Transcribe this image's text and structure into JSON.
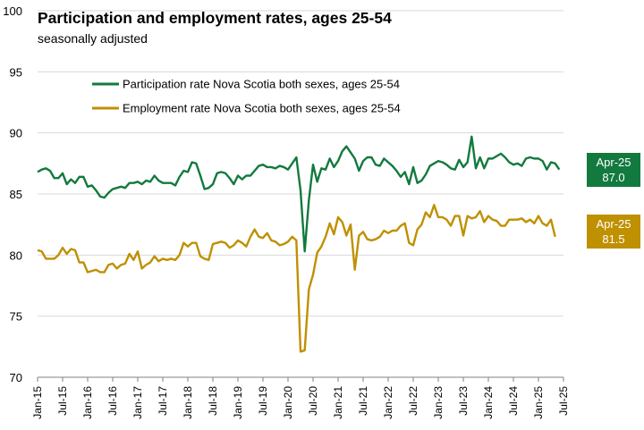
{
  "title": "Participation and employment rates, ages 25-54",
  "subtitle": "seasonally adjusted",
  "colors": {
    "participation": "#127a3e",
    "employment": "#bf9000",
    "grid": "#d9d9d9",
    "axis": "#808080"
  },
  "callouts": {
    "participation": {
      "label": "Apr-25",
      "value": "87.0"
    },
    "employment": {
      "label": "Apr-25",
      "value": "81.5"
    }
  },
  "chart_data": {
    "type": "line",
    "title": "Participation and employment rates, ages 25-54",
    "subtitle": "seasonally adjusted",
    "ylim": [
      70,
      100
    ],
    "yticks": [
      70,
      75,
      80,
      85,
      90,
      95,
      100
    ],
    "x_start": "Jan-15",
    "x_count_months": 127,
    "x_axis_months": 127,
    "xtick_labels": [
      "Jan-15",
      "Jul-15",
      "Jan-16",
      "Jul-16",
      "Jan-17",
      "Jul-17",
      "Jan-18",
      "Jul-18",
      "Jan-19",
      "Jul-19",
      "Jan-20",
      "Jul-20",
      "Jan-21",
      "Jul-21",
      "Jan-22",
      "Jul-22",
      "Jan-23",
      "Jul-23",
      "Jan-24",
      "Jul-24",
      "Jan-25",
      "Jul-25"
    ],
    "grid": true,
    "legend_position": "top-left",
    "series": [
      {
        "name": "Participation rate Nova Scotia both sexes, ages 25-54",
        "key": "participation",
        "values": [
          86.8,
          87.0,
          87.1,
          86.9,
          86.3,
          86.3,
          86.7,
          85.8,
          86.2,
          85.9,
          86.4,
          86.4,
          85.6,
          85.7,
          85.3,
          84.8,
          84.7,
          85.1,
          85.4,
          85.5,
          85.6,
          85.5,
          85.9,
          85.9,
          86.0,
          85.8,
          86.1,
          86.0,
          86.5,
          86.1,
          85.9,
          85.9,
          85.9,
          85.7,
          86.4,
          86.9,
          86.8,
          87.6,
          87.5,
          86.5,
          85.4,
          85.5,
          85.8,
          86.7,
          86.8,
          86.7,
          86.3,
          85.8,
          86.5,
          86.2,
          86.5,
          86.5,
          86.9,
          87.3,
          87.4,
          87.2,
          87.2,
          87.1,
          87.3,
          87.2,
          87.0,
          87.5,
          88.0,
          85.3,
          80.3,
          84.5,
          87.4,
          86.0,
          87.1,
          87.0,
          87.9,
          87.2,
          87.7,
          88.5,
          88.9,
          88.4,
          87.9,
          86.9,
          87.7,
          88.0,
          88.0,
          87.4,
          87.3,
          87.9,
          87.6,
          87.3,
          86.9,
          86.4,
          86.8,
          85.8,
          87.2,
          85.9,
          86.1,
          86.6,
          87.3,
          87.5,
          87.7,
          87.6,
          87.4,
          87.1,
          87.0,
          87.8,
          87.2,
          87.6,
          89.7,
          87.1,
          88.0,
          87.1,
          87.9,
          87.9,
          88.1,
          88.3,
          88.0,
          87.6,
          87.4,
          87.5,
          87.3,
          87.9,
          88.0,
          87.9,
          87.9,
          87.7,
          87.0,
          87.6,
          87.5,
          87.0
        ]
      },
      {
        "name": "Employment rate Nova Scotia both sexes, ages 25-54",
        "key": "employment",
        "values": [
          80.4,
          80.3,
          79.7,
          79.7,
          79.7,
          80.0,
          80.6,
          80.1,
          80.5,
          80.4,
          79.4,
          79.4,
          78.6,
          78.7,
          78.8,
          78.6,
          78.6,
          79.2,
          79.3,
          78.9,
          79.2,
          79.3,
          80.1,
          79.6,
          80.3,
          78.9,
          79.2,
          79.4,
          79.9,
          79.5,
          79.7,
          79.6,
          79.7,
          79.6,
          80.0,
          81.0,
          80.7,
          81.0,
          81.0,
          79.9,
          79.7,
          79.6,
          80.9,
          81.0,
          81.1,
          81.0,
          80.6,
          80.8,
          81.2,
          81.0,
          80.7,
          81.5,
          82.1,
          81.5,
          81.4,
          81.8,
          81.2,
          81.1,
          80.8,
          80.9,
          81.1,
          81.5,
          81.2,
          72.1,
          72.2,
          77.2,
          78.4,
          80.2,
          80.7,
          81.5,
          82.6,
          81.7,
          83.1,
          82.7,
          81.6,
          82.5,
          78.8,
          81.6,
          81.9,
          81.3,
          81.2,
          81.3,
          81.5,
          82.0,
          81.8,
          82.0,
          82.0,
          82.4,
          82.6,
          81.0,
          80.8,
          82.1,
          82.5,
          83.5,
          83.1,
          84.1,
          83.1,
          83.1,
          82.9,
          82.4,
          83.2,
          83.2,
          81.6,
          83.2,
          83.0,
          83.1,
          83.6,
          82.7,
          83.2,
          82.9,
          82.8,
          82.4,
          82.4,
          82.9,
          82.9,
          82.9,
          83.0,
          82.7,
          82.9,
          82.6,
          83.2,
          82.6,
          82.4,
          82.9,
          81.5
        ]
      }
    ]
  }
}
